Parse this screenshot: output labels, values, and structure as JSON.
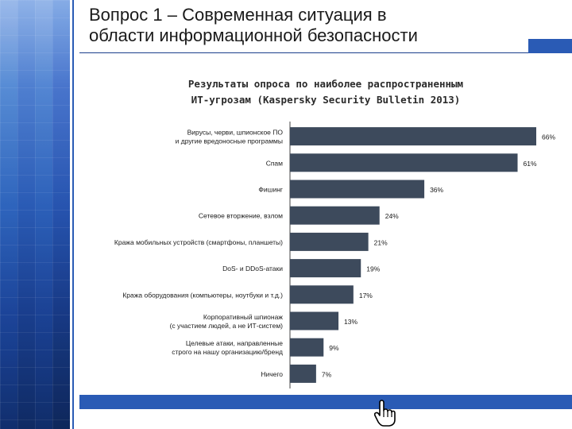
{
  "slide": {
    "title_line1": "Вопрос 1 – Современная ситуация в",
    "title_line2": "области информационной безопасности"
  },
  "chart_data": {
    "type": "bar",
    "orientation": "horizontal",
    "title_line1": "Результаты опроса по наиболее распространенным",
    "title_line2": "ИТ-угрозам (Kaspersky Security Bulletin 2013)",
    "categories": [
      [
        "Вирусы, черви, шпионское ПО",
        "и другие вредоносные программы"
      ],
      [
        "Спам"
      ],
      [
        "Фишинг"
      ],
      [
        "Сетевое вторжение, взлом"
      ],
      [
        "Кража мобильных устройств (смартфоны, планшеты)"
      ],
      [
        "DoS- и DDoS-атаки"
      ],
      [
        "Кража оборудования (компьютеры, ноутбуки и т.д.)"
      ],
      [
        "Корпоративный шпионаж",
        "(с участием людей, а не ИТ-систем)"
      ],
      [
        "Целевые атаки, направленные",
        "строго на нашу организацию/бренд"
      ],
      [
        "Ничего"
      ]
    ],
    "values": [
      66,
      61,
      36,
      24,
      21,
      19,
      17,
      13,
      9,
      7
    ],
    "value_labels": [
      "66%",
      "61%",
      "36%",
      "24%",
      "21%",
      "19%",
      "17%",
      "13%",
      "9%",
      "7%"
    ],
    "unit": "%",
    "xlim": [
      0,
      66
    ],
    "grid": false,
    "legend": "none",
    "bar_color": "#3d4a5c",
    "axis_color": "#444444"
  },
  "colors": {
    "accent": "#2a5bb5",
    "panel": "#1b3f8c"
  },
  "icons": {
    "cursor": "hand-pointer-icon"
  }
}
